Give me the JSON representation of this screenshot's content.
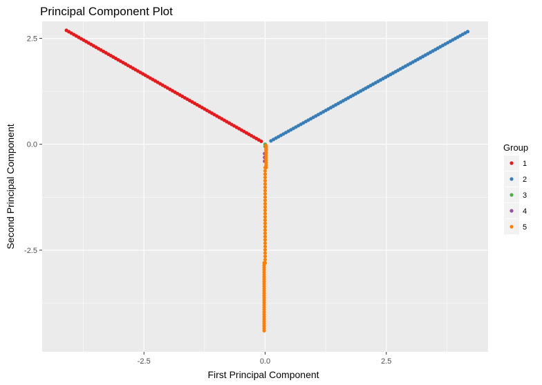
{
  "chart_data": {
    "type": "scatter",
    "title": "Principal Component Plot",
    "xlabel": "First Principal Component",
    "ylabel": "Second Principal Component",
    "xlim": [
      -4.6,
      4.6
    ],
    "ylim": [
      -4.9,
      2.9
    ],
    "x_ticks": [
      -2.5,
      0.0,
      2.5
    ],
    "x_tick_labels": [
      "-2.5",
      "0.0",
      "2.5"
    ],
    "y_ticks": [
      -2.5,
      0.0,
      2.5
    ],
    "y_tick_labels": [
      "-2.5",
      "0.0",
      "2.5"
    ],
    "grid": true,
    "background": "#EBEBEB",
    "legend": {
      "title": "Group",
      "placement": "right",
      "entries": [
        "1",
        "2",
        "3",
        "4",
        "5"
      ]
    },
    "series": [
      {
        "name": "1",
        "color": "#E41A1C",
        "segments": [
          {
            "x_start": -4.1,
            "y_start": 2.69,
            "x_end": -0.08,
            "y_end": 0.07,
            "n": 80
          }
        ]
      },
      {
        "name": "2",
        "color": "#377EB8",
        "segments": [
          {
            "x_start": 0.12,
            "y_start": 0.08,
            "x_end": 4.18,
            "y_end": 2.66,
            "n": 80
          }
        ]
      },
      {
        "name": "3",
        "color": "#4DAF4A",
        "segments": [
          {
            "x_start": 0.0,
            "y_start": 0.0,
            "x_end": 0.0,
            "y_end": -0.05,
            "n": 2
          }
        ]
      },
      {
        "name": "4",
        "color": "#984EA3",
        "segments": [
          {
            "x_start": 0.02,
            "y_start": -0.05,
            "x_end": 0.02,
            "y_end": -0.2,
            "n": 3
          },
          {
            "x_start": -0.01,
            "y_start": -0.22,
            "x_end": -0.01,
            "y_end": -0.4,
            "n": 3
          }
        ]
      },
      {
        "name": "5",
        "color": "#FF7F00",
        "segments": [
          {
            "x_start": 0.02,
            "y_start": -0.03,
            "x_end": 0.02,
            "y_end": -0.55,
            "n": 10
          },
          {
            "x_start": 0.0,
            "y_start": -0.55,
            "x_end": 0.0,
            "y_end": -2.8,
            "n": 30
          },
          {
            "x_start": -0.02,
            "y_start": -2.8,
            "x_end": -0.02,
            "y_end": -4.4,
            "n": 30
          }
        ]
      }
    ]
  }
}
